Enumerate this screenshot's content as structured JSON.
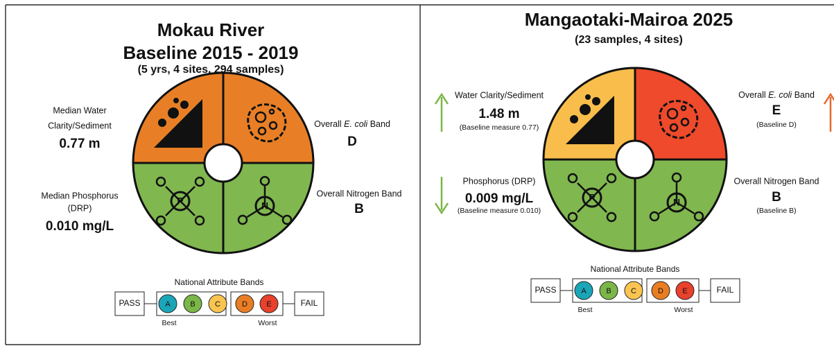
{
  "panels": [
    {
      "title_lines": [
        "Mokau River",
        "Baseline 2015 - 2019"
      ],
      "subtitle": "(5 yrs, 4 sites, 294 samples)",
      "quadrant_colors": [
        "#e87f26",
        "#e87f26",
        "#80b74f",
        "#80b74f"
      ],
      "clarity": {
        "label_lines": [
          "Median Water",
          "Clarity/Sediment"
        ],
        "value": "0.77 m"
      },
      "ecoli": {
        "label": [
          "Overall",
          "E. coli",
          "Band"
        ],
        "value": "D"
      },
      "phosphorus": {
        "label_lines": [
          "Median Phosphorus",
          "(DRP)"
        ],
        "value": "0.010 mg/L"
      },
      "nitrogen": {
        "label_lines": [
          "Overall Nitrogen Band"
        ],
        "value": "B"
      }
    },
    {
      "title_lines": [
        "Mangaotaki-Mairoa 2025"
      ],
      "subtitle": "(23 samples, 4 sites)",
      "quadrant_colors": [
        "#f8bd4b",
        "#ee4a2b",
        "#80b74f",
        "#80b74f"
      ],
      "clarity": {
        "label_lines": [
          "Water Clarity/Sediment"
        ],
        "value": "1.48 m",
        "note": "(Baseline measure 0.77)"
      },
      "ecoli": {
        "label": [
          "Overall",
          "E. coli",
          "Band"
        ],
        "value": "E",
        "note": "(Baseline D)"
      },
      "phosphorus": {
        "label_lines": [
          "Phosphorus (DRP)"
        ],
        "value": "0.009 mg/L",
        "note": "(Baseline measure 0.010)"
      },
      "nitrogen": {
        "label_lines": [
          "Overall Nitrogen Band"
        ],
        "value": "B",
        "note": "(Baseline B)"
      }
    }
  ],
  "icon_letters": {
    "phosphorus": "P",
    "nitrogen": "N"
  },
  "legend": {
    "title": "National Attribute Bands",
    "pass": "PASS",
    "fail": "FAIL",
    "best": "Best",
    "worst": "Worst",
    "bands": [
      {
        "letter": "A",
        "color": "#1ba6b7"
      },
      {
        "letter": "B",
        "color": "#7ab648"
      },
      {
        "letter": "C",
        "color": "#f9c550"
      },
      {
        "letter": "D",
        "color": "#e97d24"
      },
      {
        "letter": "E",
        "color": "#e8412c"
      }
    ]
  }
}
